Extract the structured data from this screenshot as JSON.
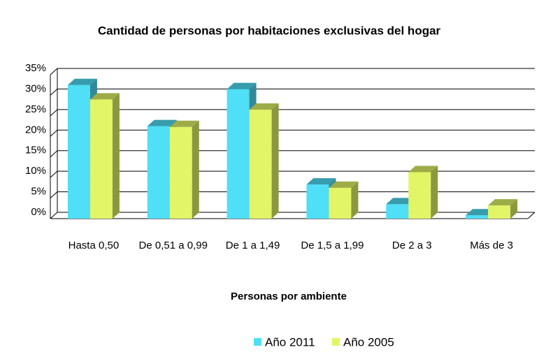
{
  "chart_data": {
    "type": "bar3d",
    "title": "Cantidad de personas por habitaciones exclusivas del hogar",
    "x_label": "Personas por ambiente",
    "categories": [
      "Hasta 0,50",
      "De 0,51 a 0,99",
      "De 1 a 1,49",
      "De 1,5 a 1,99",
      "De 2 a 3",
      "Más de 3"
    ],
    "series": [
      {
        "name": "Año 2011",
        "color": "#4fdff6",
        "values": [
          32.5,
          22.5,
          31.5,
          8.3,
          3.5,
          0.8
        ]
      },
      {
        "name": "Año 2005",
        "color": "#e2f567",
        "values": [
          29,
          22.3,
          26.5,
          7.5,
          11.3,
          3.2
        ]
      }
    ],
    "ylim": [
      0,
      35
    ],
    "yticks": [
      {
        "value": 0,
        "label": "0%"
      },
      {
        "value": 5,
        "label": "5%"
      },
      {
        "value": 10,
        "label": "10%"
      },
      {
        "value": 15,
        "label": "15%"
      },
      {
        "value": 20,
        "label": "20%"
      },
      {
        "value": 25,
        "label": "25%"
      },
      {
        "value": 30,
        "label": "30%"
      },
      {
        "value": 35,
        "label": "35%"
      }
    ],
    "grid": true,
    "legend": "bottom"
  }
}
